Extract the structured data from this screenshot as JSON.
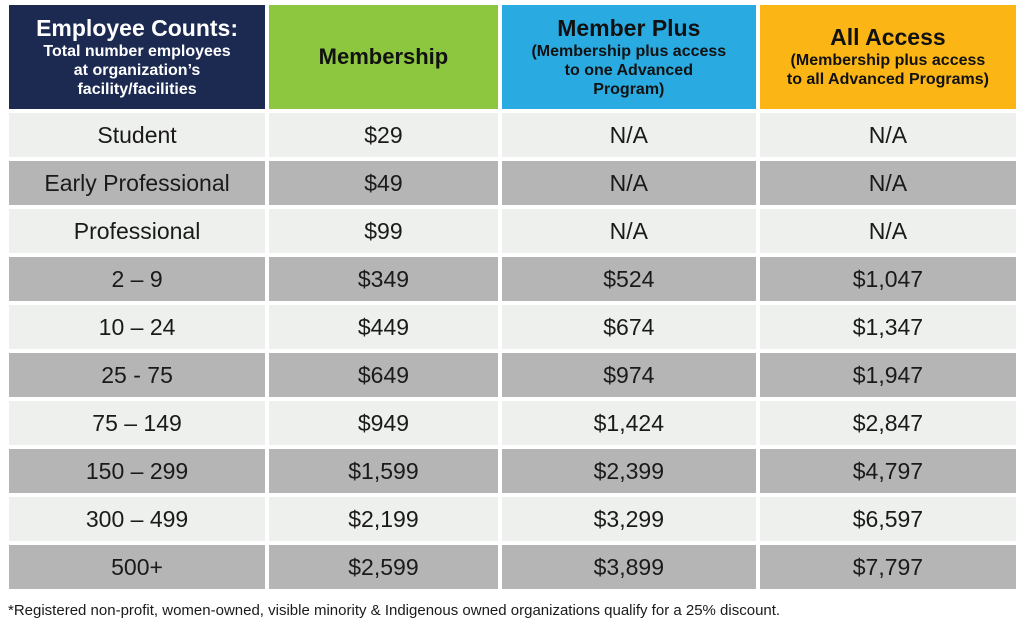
{
  "table": {
    "headers": [
      {
        "title": "Employee Counts:",
        "subtitle_lines": [
          "Total number employees",
          "at organization’s",
          "facility/facilities"
        ]
      },
      {
        "title": "Membership",
        "subtitle_lines": []
      },
      {
        "title": "Member Plus",
        "subtitle_lines": [
          "(Membership plus access",
          "to one Advanced",
          "Program)"
        ]
      },
      {
        "title": "All Access",
        "subtitle_lines": [
          "(Membership plus access",
          "to all Advanced Programs)"
        ]
      }
    ],
    "header_colors": [
      "#1c2a52",
      "#8dc63f",
      "#29abe2",
      "#fbb616"
    ],
    "rows": [
      [
        "Student",
        "$29",
        "N/A",
        "N/A"
      ],
      [
        "Early Professional",
        "$49",
        "N/A",
        "N/A"
      ],
      [
        "Professional",
        "$99",
        "N/A",
        "N/A"
      ],
      [
        "2 – 9",
        "$349",
        "$524",
        "$1,047"
      ],
      [
        "10 – 24",
        "$449",
        "$674",
        "$1,347"
      ],
      [
        "25 - 75",
        "$649",
        "$974",
        "$1,947"
      ],
      [
        "75 – 149",
        "$949",
        "$1,424",
        "$2,847"
      ],
      [
        "150 – 299",
        "$1,599",
        "$2,399",
        "$4,797"
      ],
      [
        "300 – 499",
        "$2,199",
        "$3,299",
        "$6,597"
      ],
      [
        "500+",
        "$2,599",
        "$3,899",
        "$7,797"
      ]
    ],
    "row_colors": [
      "#eef0ed",
      "#b5b5b5"
    ]
  },
  "footnote": "*Registered non-profit, women-owned, visible minority & Indigenous owned organizations qualify for a 25% discount."
}
